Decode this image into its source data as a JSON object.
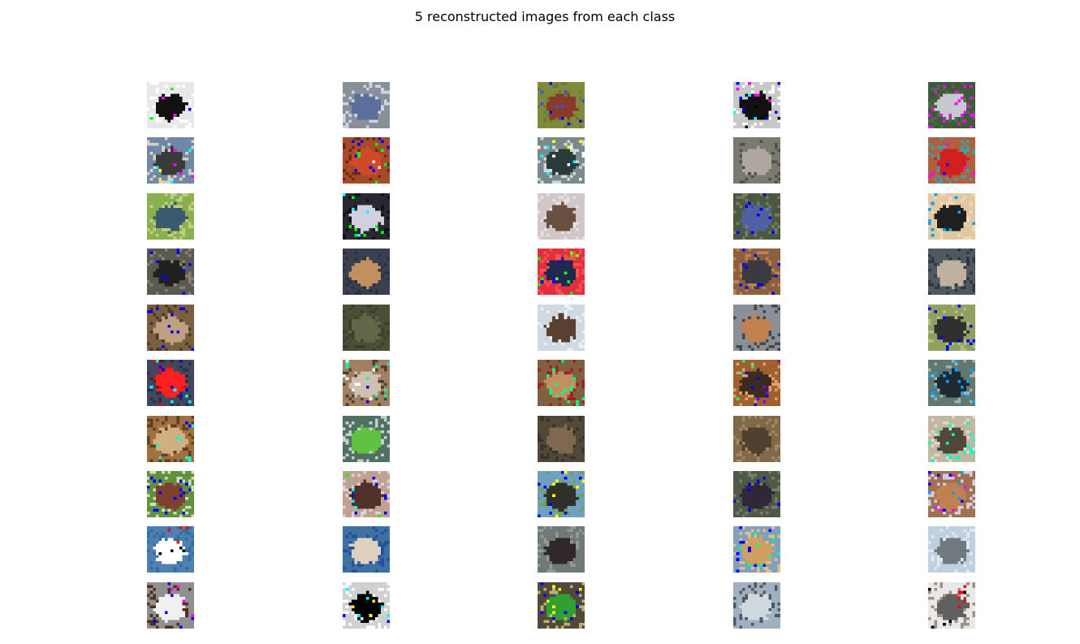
{
  "figure": {
    "title": "5 reconstructed images from each class"
  },
  "grid": {
    "rows": 10,
    "cols": 5,
    "tiles": [
      [
        {
          "bg": "#e8e8e8",
          "a": "#111111",
          "b": "#ffffff",
          "n": [
            "#ff00ff",
            "#0000ff",
            "#00ff00",
            "#ffffff"
          ]
        },
        {
          "bg": "#8a8f98",
          "a": "#5a6f9a",
          "b": "#c9d6e6",
          "n": []
        },
        {
          "bg": "#7f8a3a",
          "a": "#8a3a2a",
          "b": "#6a7a30",
          "n": [
            "#0000ff",
            "#3355ff"
          ]
        },
        {
          "bg": "#c8c8c8",
          "a": "#111111",
          "b": "#ffffff",
          "n": [
            "#0000ff",
            "#ff00ff",
            "#00ffff",
            "#000000"
          ]
        },
        {
          "bg": "#3f5a3a",
          "a": "#c8c8d0",
          "b": "#4f6a45",
          "n": [
            "#ff00ff"
          ]
        }
      ],
      [
        {
          "bg": "#7088a8",
          "a": "#3a3a3a",
          "b": "#d8d0c0",
          "n": [
            "#00ffff",
            "#ffff00",
            "#ff00ff"
          ]
        },
        {
          "bg": "#a84a2a",
          "a": "#d04a2a",
          "b": "#6a2a1a",
          "n": [
            "#00ff00",
            "#0000ff",
            "#ffffff"
          ]
        },
        {
          "bg": "#7a8a8a",
          "a": "#2a3a3a",
          "b": "#d0d8d8",
          "n": [
            "#ffff00",
            "#ffffff",
            "#00ffff"
          ]
        },
        {
          "bg": "#7a7a70",
          "a": "#b0a8a0",
          "b": "#505048",
          "n": []
        },
        {
          "bg": "#b06040",
          "a": "#d02020",
          "b": "#40a0a0",
          "n": [
            "#0000ff",
            "#ff00ff"
          ]
        }
      ],
      [
        {
          "bg": "#8ab050",
          "a": "#3a5a70",
          "b": "#c0d080",
          "n": []
        },
        {
          "bg": "#282830",
          "a": "#d0d0e0",
          "b": "#101018",
          "n": [
            "#00ffff",
            "#00ff00"
          ]
        },
        {
          "bg": "#d0c8c8",
          "a": "#6a5040",
          "b": "#e8e0e0",
          "n": []
        },
        {
          "bg": "#4a5a40",
          "a": "#5060a0",
          "b": "#7a7a60",
          "n": [
            "#0000ff"
          ]
        },
        {
          "bg": "#e0c8a0",
          "a": "#202020",
          "b": "#f0d8b8",
          "n": [
            "#00a0ff"
          ]
        }
      ],
      [
        {
          "bg": "#5a5a50",
          "a": "#202020",
          "b": "#8a8070",
          "n": [
            "#0000ff"
          ]
        },
        {
          "bg": "#3a4050",
          "a": "#c09060",
          "b": "#2a3040",
          "n": []
        },
        {
          "bg": "#e03040",
          "a": "#202850",
          "b": "#ff5050",
          "n": [
            "#00ff00",
            "#80ff00",
            "#0000ff"
          ]
        },
        {
          "bg": "#8a6040",
          "a": "#3a3a40",
          "b": "#c08050",
          "n": [
            "#0000ff"
          ]
        },
        {
          "bg": "#505860",
          "a": "#c0b0a0",
          "b": "#303840",
          "n": []
        }
      ],
      [
        {
          "bg": "#7a6040",
          "a": "#c0a080",
          "b": "#4a3a28",
          "n": [
            "#0000ff"
          ]
        },
        {
          "bg": "#4a5038",
          "a": "#606848",
          "b": "#3a4030",
          "n": []
        },
        {
          "bg": "#d0d8e0",
          "a": "#5a4030",
          "b": "#e8f0f8",
          "n": []
        },
        {
          "bg": "#8a9098",
          "a": "#c08050",
          "b": "#404850",
          "n": []
        },
        {
          "bg": "#90a060",
          "a": "#303030",
          "b": "#b0c080",
          "n": [
            "#0000ff"
          ]
        }
      ],
      [
        {
          "bg": "#404860",
          "a": "#ff2020",
          "b": "#2a3040",
          "n": [
            "#0000ff",
            "#ff0000",
            "#00ffff"
          ]
        },
        {
          "bg": "#a08060",
          "a": "#d0c0b0",
          "b": "#504030",
          "n": [
            "#00ffaa",
            "#0000ff",
            "#ffffff"
          ]
        },
        {
          "bg": "#806040",
          "a": "#c09060",
          "b": "#a02020",
          "n": [
            "#00ff80"
          ]
        },
        {
          "bg": "#a06030",
          "a": "#3a2a20",
          "b": "#e0a070",
          "n": [
            "#8000ff",
            "#0000ff",
            "#00ff80"
          ]
        },
        {
          "bg": "#607870",
          "a": "#202830",
          "b": "#a0b0b0",
          "n": [
            "#00a0ff"
          ]
        }
      ],
      [
        {
          "bg": "#a07040",
          "a": "#d0b080",
          "b": "#604020",
          "n": [
            "#00ffcc",
            "#0000ff"
          ]
        },
        {
          "bg": "#507060",
          "a": "#60c040",
          "b": "#c0d0d0",
          "n": []
        },
        {
          "bg": "#504838",
          "a": "#806850",
          "b": "#3a3428",
          "n": []
        },
        {
          "bg": "#806848",
          "a": "#504030",
          "b": "#a08860",
          "n": []
        },
        {
          "bg": "#c0b8a0",
          "a": "#504838",
          "b": "#e0d8c8",
          "n": [
            "#00ffcc"
          ]
        }
      ],
      [
        {
          "bg": "#609040",
          "a": "#804030",
          "b": "#d0e0b0",
          "n": [
            "#0000ff"
          ]
        },
        {
          "bg": "#c0a090",
          "a": "#503028",
          "b": "#e0d0d0",
          "n": [
            "#00ffff",
            "#00ff00",
            "#0000ff"
          ]
        },
        {
          "bg": "#70a0c0",
          "a": "#303028",
          "b": "#70a050",
          "n": [
            "#ffff00",
            "#0000ff"
          ]
        },
        {
          "bg": "#505848",
          "a": "#302838",
          "b": "#708060",
          "n": [
            "#0000ff"
          ]
        },
        {
          "bg": "#a07050",
          "a": "#c08050",
          "b": "#d0d0e0",
          "n": [
            "#ff00ff",
            "#0000ff",
            "#00a0ff"
          ]
        }
      ],
      [
        {
          "bg": "#5080b0",
          "a": "#ffffff",
          "b": "#3070a0",
          "n": [
            "#ff0000",
            "#000000"
          ]
        },
        {
          "bg": "#4070a0",
          "a": "#e0d0c0",
          "b": "#2050a0",
          "n": []
        },
        {
          "bg": "#707878",
          "a": "#302828",
          "b": "#909898",
          "n": []
        },
        {
          "bg": "#80a0c0",
          "a": "#d0a060",
          "b": "#e0c080",
          "n": [
            "#00ff80",
            "#0000ff"
          ]
        },
        {
          "bg": "#c0d0e0",
          "a": "#707880",
          "b": "#e0e8f0",
          "n": []
        }
      ],
      [
        {
          "bg": "#909090",
          "a": "#f0f0f0",
          "b": "#503020",
          "n": [
            "#ff00ff",
            "#0000ff"
          ]
        },
        {
          "bg": "#d0d0d0",
          "a": "#000000",
          "b": "#ffffff",
          "n": [
            "#ffff00",
            "#0000ff",
            "#00ffff"
          ]
        },
        {
          "bg": "#504838",
          "a": "#30a030",
          "b": "#c0b070",
          "n": [
            "#0000ff",
            "#ffff00"
          ]
        },
        {
          "bg": "#a0b0c0",
          "a": "#d0d8e0",
          "b": "#505860",
          "n": []
        },
        {
          "bg": "#e8e8e8",
          "a": "#606060",
          "b": "#a09080",
          "n": [
            "#ff0000",
            "#000000"
          ]
        }
      ]
    ]
  }
}
